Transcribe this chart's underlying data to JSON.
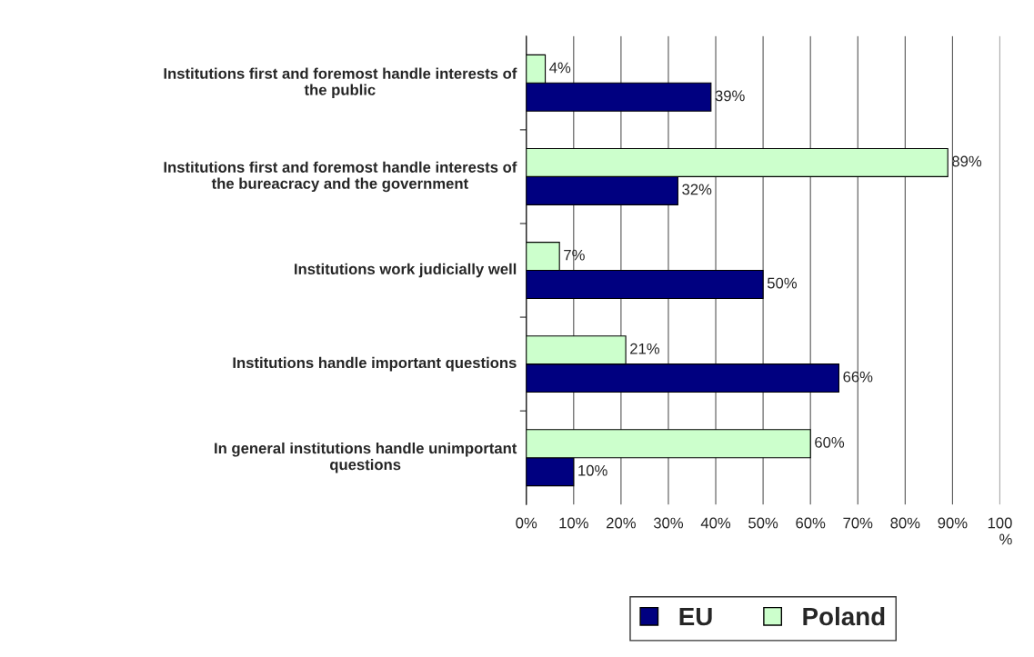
{
  "chart_data": {
    "type": "bar",
    "orientation": "horizontal",
    "categories": [
      "Institutions first and foremost handle interests of\nthe public",
      "Institutions first and foremost handle interests of\nthe bureacracy and the government",
      "Institutions work judicially well",
      "Institutions handle important questions",
      "In general institutions handle unimportant\nquestions"
    ],
    "series": [
      {
        "name": "EU",
        "color": "#000080",
        "values": [
          39,
          32,
          50,
          66,
          10
        ],
        "value_labels": [
          "39%",
          "32%",
          "50%",
          "66%",
          "10%"
        ]
      },
      {
        "name": "Poland",
        "color": "#ccffcc",
        "values": [
          4,
          89,
          7,
          21,
          60
        ],
        "value_labels": [
          "4%",
          "89%",
          "7%",
          "21%",
          "60%"
        ]
      }
    ],
    "xlim": [
      0,
      100
    ],
    "xticks": [
      {
        "value": 0,
        "label": "0%"
      },
      {
        "value": 10,
        "label": "10%"
      },
      {
        "value": 20,
        "label": "20%"
      },
      {
        "value": 30,
        "label": "30%"
      },
      {
        "value": 40,
        "label": "40%"
      },
      {
        "value": 50,
        "label": "50%"
      },
      {
        "value": 60,
        "label": "60%"
      },
      {
        "value": 70,
        "label": "70%"
      },
      {
        "value": 80,
        "label": "80%"
      },
      {
        "value": 90,
        "label": "90%"
      },
      {
        "value": 100,
        "label": "100\n%"
      }
    ],
    "grid": "x",
    "legend": "bottom"
  }
}
